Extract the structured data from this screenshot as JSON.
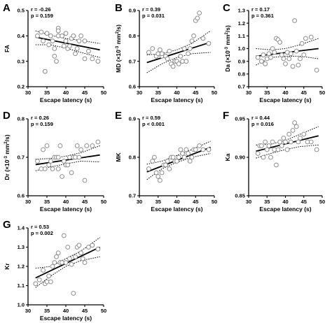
{
  "chart_data": [
    {
      "panel": "A",
      "type": "scatter",
      "stats": [
        "r = -0.26",
        "p = 0.159"
      ],
      "xlabel": "Escape latency (s)",
      "ylabel": [
        "FA"
      ],
      "xlim": [
        30,
        50
      ],
      "ylim": [
        0.2,
        0.5
      ],
      "xticks": [
        30,
        35,
        40,
        45,
        50
      ],
      "yticks": [
        0.2,
        0.3,
        0.4,
        0.5
      ],
      "ytick_labels": [
        "0.2",
        "0.3",
        "0.4",
        "0.5"
      ],
      "fit": {
        "x": [
          32,
          49
        ],
        "y": [
          0.395,
          0.345
        ]
      },
      "ci_upper": {
        "x": [
          32,
          36,
          40,
          44,
          49
        ],
        "y": [
          0.42,
          0.402,
          0.39,
          0.382,
          0.37
        ]
      },
      "ci_lower": {
        "x": [
          32,
          36,
          40,
          44,
          49
        ],
        "y": [
          0.365,
          0.365,
          0.352,
          0.335,
          0.315
        ]
      },
      "points": [
        [
          32.5,
          0.4
        ],
        [
          33.5,
          0.415
        ],
        [
          34,
          0.38
        ],
        [
          34.5,
          0.26
        ],
        [
          35,
          0.41
        ],
        [
          35.5,
          0.365
        ],
        [
          36,
          0.4
        ],
        [
          36.5,
          0.38
        ],
        [
          37,
          0.35
        ],
        [
          37,
          0.32
        ],
        [
          37.5,
          0.3
        ],
        [
          38,
          0.43
        ],
        [
          38,
          0.4
        ],
        [
          38,
          0.42
        ],
        [
          39,
          0.4
        ],
        [
          39.5,
          0.36
        ],
        [
          40,
          0.41
        ],
        [
          40,
          0.38
        ],
        [
          40.5,
          0.35
        ],
        [
          41,
          0.36
        ],
        [
          41.5,
          0.39
        ],
        [
          42,
          0.4
        ],
        [
          42.5,
          0.33
        ],
        [
          43,
          0.35
        ],
        [
          43.5,
          0.38
        ],
        [
          44,
          0.4
        ],
        [
          45,
          0.38
        ],
        [
          45,
          0.31
        ],
        [
          46,
          0.34
        ],
        [
          47,
          0.31
        ],
        [
          48.5,
          0.3
        ]
      ]
    },
    {
      "panel": "B",
      "type": "scatter",
      "stats": [
        "r = 0.39",
        "p = 0.031"
      ],
      "xlabel": "Escape latency (s)",
      "ylabel": [
        "MD (×10",
        "-3",
        " mm",
        "2",
        "/s)"
      ],
      "xlim": [
        30,
        50
      ],
      "ylim": [
        0.6,
        0.9
      ],
      "xticks": [
        30,
        35,
        40,
        45,
        50
      ],
      "yticks": [
        0.6,
        0.7,
        0.8,
        0.9
      ],
      "ytick_labels": [
        "0.6",
        "0.7",
        "0.8",
        "0.9"
      ],
      "fit": {
        "x": [
          32,
          49
        ],
        "y": [
          0.695,
          0.775
        ]
      },
      "ci_upper": {
        "x": [
          32,
          36,
          40,
          44,
          49
        ],
        "y": [
          0.725,
          0.73,
          0.745,
          0.77,
          0.82
        ]
      },
      "ci_lower": {
        "x": [
          32,
          36,
          40,
          44,
          49
        ],
        "y": [
          0.655,
          0.69,
          0.715,
          0.73,
          0.735
        ]
      },
      "points": [
        [
          32.5,
          0.735
        ],
        [
          33.5,
          0.75
        ],
        [
          34.5,
          0.72
        ],
        [
          35,
          0.73
        ],
        [
          35.5,
          0.745
        ],
        [
          36,
          0.72
        ],
        [
          36,
          0.73
        ],
        [
          37,
          0.72
        ],
        [
          37.5,
          0.71
        ],
        [
          38,
          0.74
        ],
        [
          38.5,
          0.69
        ],
        [
          39,
          0.68
        ],
        [
          39.5,
          0.7
        ],
        [
          40,
          0.7
        ],
        [
          40.5,
          0.69
        ],
        [
          41,
          0.72
        ],
        [
          41.5,
          0.7
        ],
        [
          42,
          0.75
        ],
        [
          42.5,
          0.7
        ],
        [
          43,
          0.73
        ],
        [
          43.5,
          0.75
        ],
        [
          44,
          0.78
        ],
        [
          44.5,
          0.8
        ],
        [
          45,
          0.86
        ],
        [
          45.5,
          0.87
        ],
        [
          46,
          0.89
        ],
        [
          47,
          0.79
        ],
        [
          48.5,
          0.77
        ]
      ]
    },
    {
      "panel": "C",
      "type": "scatter",
      "stats": [
        "r = 0.17",
        "p = 0.361"
      ],
      "xlabel": "Escape latency (s)",
      "ylabel": [
        "Da (×10",
        "-3",
        " mm",
        "2",
        "/s)"
      ],
      "xlim": [
        30,
        50
      ],
      "ylim": [
        0.7,
        1.3
      ],
      "xticks": [
        30,
        35,
        40,
        45,
        50
      ],
      "yticks": [
        0.7,
        0.8,
        0.9,
        1.0,
        1.1,
        1.2,
        1.3
      ],
      "ytick_labels": [
        "0.7",
        "0.8",
        "0.9",
        "1.0",
        "1.1",
        "1.2",
        "1.3"
      ],
      "fit": {
        "x": [
          32,
          49
        ],
        "y": [
          0.94,
          1.0
        ]
      },
      "ci_upper": {
        "x": [
          32,
          36,
          40,
          44,
          49
        ],
        "y": [
          1.0,
          0.99,
          1.0,
          1.03,
          1.08
        ]
      },
      "ci_lower": {
        "x": [
          32,
          36,
          40,
          44,
          49
        ],
        "y": [
          0.87,
          0.93,
          0.94,
          0.94,
          0.92
        ]
      },
      "points": [
        [
          32.5,
          0.93
        ],
        [
          33.5,
          0.9
        ],
        [
          34,
          0.95
        ],
        [
          34.5,
          0.88
        ],
        [
          35,
          0.92
        ],
        [
          35.5,
          0.96
        ],
        [
          36,
          0.93
        ],
        [
          36.5,
          1.0
        ],
        [
          37,
          0.97
        ],
        [
          37.5,
          1.08
        ],
        [
          38,
          1.07
        ],
        [
          38.5,
          1.05
        ],
        [
          39,
          0.95
        ],
        [
          39.5,
          0.92
        ],
        [
          40,
          0.88
        ],
        [
          40.5,
          0.97
        ],
        [
          41,
          0.92
        ],
        [
          41.5,
          0.96
        ],
        [
          42,
          0.86
        ],
        [
          42.5,
          1.22
        ],
        [
          43,
          0.98
        ],
        [
          43.5,
          0.87
        ],
        [
          44,
          0.92
        ],
        [
          44.5,
          1.04
        ],
        [
          45,
          0.95
        ],
        [
          45.5,
          1.08
        ],
        [
          47,
          1.09
        ],
        [
          48.5,
          0.83
        ]
      ]
    },
    {
      "panel": "D",
      "type": "scatter",
      "stats": [
        "r = 0.26",
        "p = 0.159"
      ],
      "xlabel": "Escape latency (s)",
      "ylabel": [
        "Dr (×10",
        "-3",
        " mm",
        "2",
        "/s)"
      ],
      "xlim": [
        30,
        50
      ],
      "ylim": [
        0.6,
        0.8
      ],
      "xticks": [
        30,
        35,
        40,
        45,
        50
      ],
      "yticks": [
        0.6,
        0.7,
        0.8
      ],
      "ytick_labels": [
        "0.6",
        "0.7",
        "0.8"
      ],
      "fit": {
        "x": [
          32,
          49
        ],
        "y": [
          0.681,
          0.706
        ]
      },
      "ci_upper": {
        "x": [
          32,
          36,
          40,
          44,
          49
        ],
        "y": [
          0.695,
          0.697,
          0.703,
          0.712,
          0.73
        ]
      },
      "ci_lower": {
        "x": [
          32,
          36,
          40,
          44,
          49
        ],
        "y": [
          0.665,
          0.675,
          0.683,
          0.69,
          0.688
        ]
      },
      "points": [
        [
          32.5,
          0.69
        ],
        [
          33.5,
          0.67
        ],
        [
          34,
          0.72
        ],
        [
          34.5,
          0.67
        ],
        [
          35,
          0.73
        ],
        [
          35.5,
          0.68
        ],
        [
          36,
          0.69
        ],
        [
          36.5,
          0.67
        ],
        [
          37,
          0.7
        ],
        [
          37.5,
          0.7
        ],
        [
          38,
          0.7
        ],
        [
          38,
          0.67
        ],
        [
          38.5,
          0.73
        ],
        [
          39,
          0.65
        ],
        [
          39.5,
          0.69
        ],
        [
          40,
          0.68
        ],
        [
          40.5,
          0.68
        ],
        [
          41,
          0.7
        ],
        [
          41.5,
          0.66
        ],
        [
          42,
          0.7
        ],
        [
          42.5,
          0.7
        ],
        [
          43,
          0.73
        ],
        [
          43.5,
          0.7
        ],
        [
          44,
          0.72
        ],
        [
          45,
          0.64
        ],
        [
          45.5,
          0.73
        ],
        [
          47,
          0.73
        ],
        [
          48.5,
          0.74
        ]
      ]
    },
    {
      "panel": "E",
      "type": "scatter",
      "stats": [
        "r = 0.59",
        "p < 0.001"
      ],
      "xlabel": "Escape latency (s)",
      "ylabel": [
        "MK"
      ],
      "xlim": [
        30,
        50
      ],
      "ylim": [
        0.7,
        0.9
      ],
      "xticks": [
        30,
        35,
        40,
        45,
        50
      ],
      "yticks": [
        0.7,
        0.8,
        0.9
      ],
      "ytick_labels": [
        "0.7",
        "0.8",
        "0.9"
      ],
      "fit": {
        "x": [
          32,
          49
        ],
        "y": [
          0.762,
          0.826
        ]
      },
      "ci_upper": {
        "x": [
          32,
          36,
          40,
          44,
          49
        ],
        "y": [
          0.782,
          0.79,
          0.805,
          0.82,
          0.842
        ]
      },
      "ci_lower": {
        "x": [
          32,
          36,
          40,
          44,
          49
        ],
        "y": [
          0.742,
          0.77,
          0.787,
          0.8,
          0.81
        ]
      },
      "points": [
        [
          32.5,
          0.77
        ],
        [
          33.5,
          0.79
        ],
        [
          34,
          0.8
        ],
        [
          34.5,
          0.76
        ],
        [
          35,
          0.75
        ],
        [
          35.5,
          0.74
        ],
        [
          36,
          0.76
        ],
        [
          36.5,
          0.78
        ],
        [
          37,
          0.78
        ],
        [
          37.5,
          0.79
        ],
        [
          38,
          0.77
        ],
        [
          38.5,
          0.8
        ],
        [
          39,
          0.8
        ],
        [
          39.5,
          0.79
        ],
        [
          40,
          0.79
        ],
        [
          40.5,
          0.8
        ],
        [
          41,
          0.82
        ],
        [
          41.5,
          0.81
        ],
        [
          42,
          0.8
        ],
        [
          42.5,
          0.82
        ],
        [
          43,
          0.81
        ],
        [
          43.5,
          0.79
        ],
        [
          44,
          0.8
        ],
        [
          44.5,
          0.82
        ],
        [
          45,
          0.82
        ],
        [
          46,
          0.83
        ],
        [
          47,
          0.82
        ],
        [
          48.5,
          0.82
        ]
      ]
    },
    {
      "panel": "F",
      "type": "scatter",
      "stats": [
        "r = 0.44",
        "p = 0.016"
      ],
      "xlabel": "Escape latency (s)",
      "ylabel": [
        "Ka"
      ],
      "xlim": [
        30,
        50
      ],
      "ylim": [
        0.85,
        0.95
      ],
      "xticks": [
        30,
        35,
        40,
        45,
        50
      ],
      "yticks": [
        0.85,
        0.9,
        0.95
      ],
      "ytick_labels": [
        "0.85",
        "0.90",
        "0.95"
      ],
      "fit": {
        "x": [
          32,
          49
        ],
        "y": [
          0.908,
          0.928
        ]
      },
      "ci_upper": {
        "x": [
          32,
          36,
          40,
          44,
          49
        ],
        "y": [
          0.916,
          0.917,
          0.922,
          0.93,
          0.94
        ]
      },
      "ci_lower": {
        "x": [
          32,
          36,
          40,
          44,
          49
        ],
        "y": [
          0.899,
          0.905,
          0.91,
          0.914,
          0.916
        ]
      },
      "points": [
        [
          32.5,
          0.905
        ],
        [
          33,
          0.915
        ],
        [
          33.5,
          0.915
        ],
        [
          34,
          0.9
        ],
        [
          34.5,
          0.92
        ],
        [
          35,
          0.91
        ],
        [
          35.5,
          0.915
        ],
        [
          36,
          0.9
        ],
        [
          36.5,
          0.92
        ],
        [
          37,
          0.91
        ],
        [
          37.5,
          0.89
        ],
        [
          38,
          0.91
        ],
        [
          38.5,
          0.92
        ],
        [
          39,
          0.915
        ],
        [
          39.5,
          0.925
        ],
        [
          40,
          0.92
        ],
        [
          40.5,
          0.91
        ],
        [
          41,
          0.93
        ],
        [
          41.5,
          0.92
        ],
        [
          42,
          0.935
        ],
        [
          42.5,
          0.945
        ],
        [
          43,
          0.94
        ],
        [
          43.5,
          0.92
        ],
        [
          44,
          0.925
        ],
        [
          45,
          0.93
        ],
        [
          46,
          0.92
        ],
        [
          47,
          0.92
        ],
        [
          48.5,
          0.91
        ]
      ]
    },
    {
      "panel": "G",
      "type": "scatter",
      "stats": [
        "r = 0.53",
        "p = 0.002"
      ],
      "xlabel": "Escape latency (s)",
      "ylabel": [
        "Kr"
      ],
      "xlim": [
        30,
        50
      ],
      "ylim": [
        1.0,
        1.4
      ],
      "xticks": [
        30,
        35,
        40,
        45,
        50
      ],
      "yticks": [
        1.0,
        1.1,
        1.2,
        1.3,
        1.4
      ],
      "ytick_labels": [
        "1.0",
        "1.1",
        "1.2",
        "1.3",
        "1.4"
      ],
      "fit": {
        "x": [
          32,
          49
        ],
        "y": [
          1.14,
          1.3
        ]
      },
      "ci_upper": {
        "x": [
          32,
          36,
          40,
          44,
          49
        ],
        "y": [
          1.19,
          1.2,
          1.24,
          1.28,
          1.35
        ]
      },
      "ci_lower": {
        "x": [
          32,
          36,
          40,
          44,
          49
        ],
        "y": [
          1.09,
          1.15,
          1.2,
          1.23,
          1.25
        ]
      },
      "points": [
        [
          32,
          1.11
        ],
        [
          33,
          1.13
        ],
        [
          34,
          1.18
        ],
        [
          34.5,
          1.11
        ],
        [
          35,
          1.12
        ],
        [
          35.5,
          1.15
        ],
        [
          36,
          1.12
        ],
        [
          36.5,
          1.2
        ],
        [
          37,
          1.22
        ],
        [
          37.5,
          1.25
        ],
        [
          38,
          1.27
        ],
        [
          38.5,
          1.22
        ],
        [
          39,
          1.22
        ],
        [
          39.5,
          1.36
        ],
        [
          40,
          1.22
        ],
        [
          40.5,
          1.3
        ],
        [
          41,
          1.24
        ],
        [
          41.5,
          1.21
        ],
        [
          42,
          1.06
        ],
        [
          42.5,
          1.25
        ],
        [
          43,
          1.3
        ],
        [
          43.5,
          1.31
        ],
        [
          44,
          1.27
        ],
        [
          44.5,
          1.24
        ],
        [
          45,
          1.22
        ],
        [
          46,
          1.3
        ],
        [
          47,
          1.31
        ],
        [
          48.5,
          1.29
        ]
      ]
    }
  ]
}
